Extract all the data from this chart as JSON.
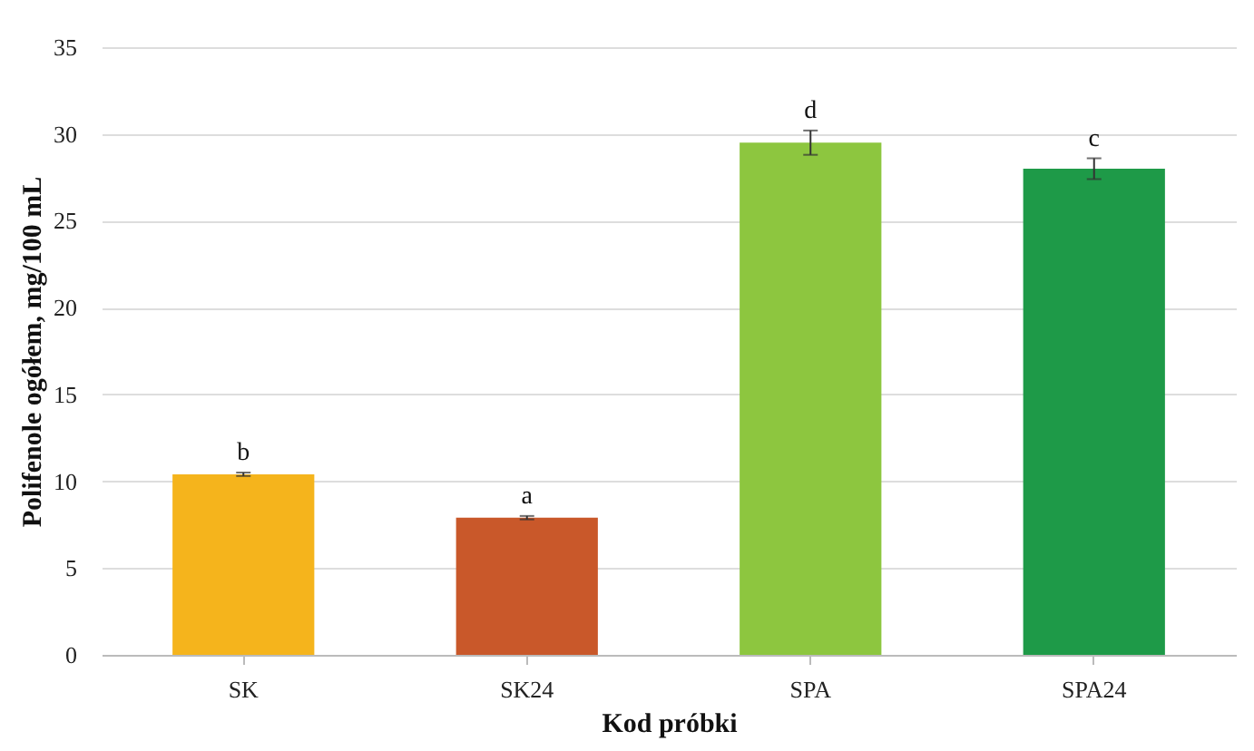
{
  "chart_data": {
    "type": "bar",
    "xlabel": "Kod próbki",
    "ylabel": "Polifenole ogółem, mg/100 mL",
    "categories": [
      "SK",
      "SK24",
      "SPA",
      "SPA24"
    ],
    "values": [
      10.4,
      7.9,
      29.5,
      28.0
    ],
    "colors": [
      "#f5b41c",
      "#c9582a",
      "#8dc63f",
      "#1e9a48"
    ],
    "errors": [
      0.1,
      0.1,
      0.7,
      0.6
    ],
    "ylim": [
      0,
      35
    ],
    "yticks": [
      0,
      5,
      10,
      15,
      20,
      25,
      30,
      35
    ],
    "grid": "y",
    "annotations": [
      {
        "text": "b",
        "x": "SK",
        "y": 10.5
      },
      {
        "text": "a",
        "x": "SK24",
        "y": 8.0
      },
      {
        "text": "d",
        "x": "SPA",
        "y": 30.2
      },
      {
        "text": "c",
        "x": "SPA24",
        "y": 28.6
      }
    ]
  }
}
